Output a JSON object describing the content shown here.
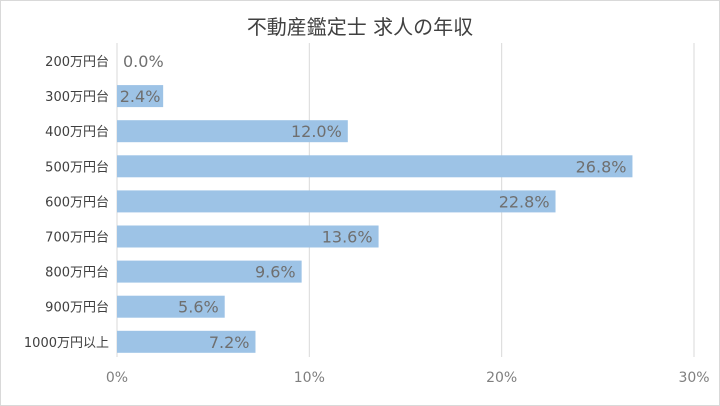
{
  "chart_data": {
    "type": "bar",
    "orientation": "horizontal",
    "title": "不動産鑑定士 求人の年収",
    "categories": [
      "200万円台",
      "300万円台",
      "400万円台",
      "500万円台",
      "600万円台",
      "700万円台",
      "800万円台",
      "900万円台",
      "1000万円以上"
    ],
    "values": [
      0.0,
      2.4,
      12.0,
      26.8,
      22.8,
      13.6,
      9.6,
      5.6,
      7.2
    ],
    "data_labels": [
      "0.0%",
      "2.4%",
      "12.0%",
      "26.8%",
      "22.8%",
      "13.6%",
      "9.6%",
      "5.6%",
      "7.2%"
    ],
    "xticks": [
      "0%",
      "10%",
      "20%",
      "30%"
    ],
    "xlim": [
      0,
      30
    ],
    "xlabel": "",
    "ylabel": "",
    "grid": true,
    "legend": "none",
    "bar_color": "#9dc3e6",
    "grid_color": "#d9d9d9"
  }
}
